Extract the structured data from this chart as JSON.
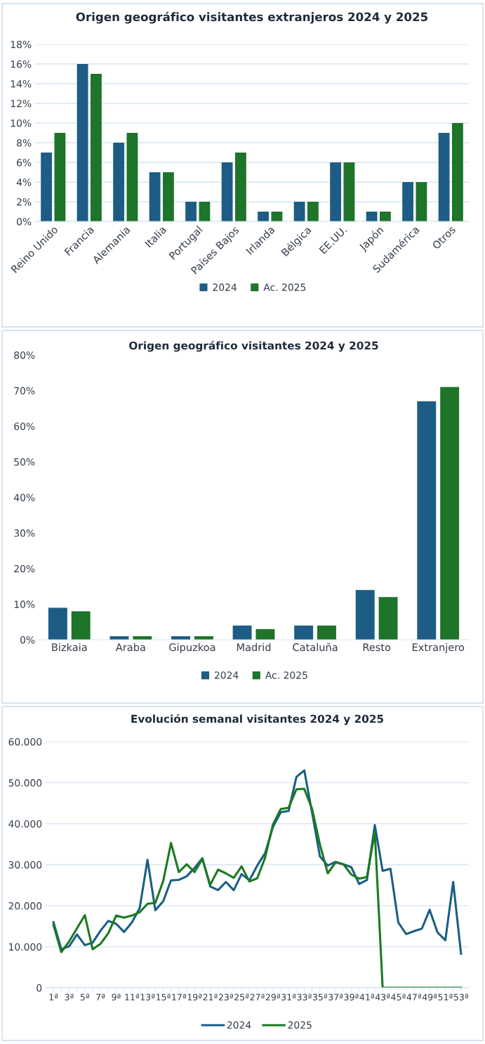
{
  "chart_data": [
    {
      "type": "bar",
      "title": "Origen geográfico visitantes extranjeros 2024 y 2025",
      "categories": [
        "Reino Unido",
        "Francia",
        "Alemania",
        "Italia",
        "Portugal",
        "Países Bajos",
        "Irlanda",
        "Bélgica",
        "EE.UU.",
        "Japón",
        "Sudamérica",
        "Otros"
      ],
      "series": [
        {
          "name": "2024",
          "color": "#1d5c84",
          "values": [
            7,
            16,
            8,
            5,
            2,
            6,
            1,
            2,
            6,
            1,
            4,
            9
          ]
        },
        {
          "name": "Ac. 2025",
          "color": "#1e7429",
          "values": [
            9,
            15,
            9,
            5,
            2,
            7,
            1,
            2,
            6,
            1,
            4,
            10
          ]
        }
      ],
      "ylim": [
        0,
        18
      ],
      "yticks": [
        {
          "value": 0,
          "label": "0%"
        },
        {
          "value": 2,
          "label": "2%"
        },
        {
          "value": 4,
          "label": "4%"
        },
        {
          "value": 6,
          "label": "6%"
        },
        {
          "value": 8,
          "label": "8%"
        },
        {
          "value": 10,
          "label": "10%"
        },
        {
          "value": 12,
          "label": "12%"
        },
        {
          "value": 14,
          "label": "14%"
        },
        {
          "value": 16,
          "label": "16%"
        },
        {
          "value": 18,
          "label": "18%"
        }
      ],
      "grid": "y",
      "legend": "bottom",
      "marker": "square"
    },
    {
      "type": "bar",
      "title": "Origen geográfico visitantes 2024 y 2025",
      "categories": [
        "Bizkaia",
        "Araba",
        "Gipuzkoa",
        "Madrid",
        "Cataluña",
        "Resto",
        "Extranjero"
      ],
      "series": [
        {
          "name": "2024",
          "color": "#1d5c84",
          "values": [
            9,
            1,
            1,
            4,
            4,
            14,
            67
          ]
        },
        {
          "name": "Ac. 2025",
          "color": "#1e7429",
          "values": [
            8,
            1,
            1,
            3,
            4,
            12,
            71
          ]
        }
      ],
      "ylim": [
        0,
        80
      ],
      "yticks": [
        {
          "value": 0,
          "label": "0%"
        },
        {
          "value": 10,
          "label": "10%"
        },
        {
          "value": 20,
          "label": "20%"
        },
        {
          "value": 30,
          "label": "30%"
        },
        {
          "value": 40,
          "label": "40%"
        },
        {
          "value": 50,
          "label": "50%"
        },
        {
          "value": 60,
          "label": "60%"
        },
        {
          "value": 70,
          "label": "70%"
        },
        {
          "value": 80,
          "label": "80%"
        }
      ],
      "grid": false,
      "legend": "bottom",
      "marker": "square"
    },
    {
      "type": "line",
      "title": "Evolución semanal visitantes 2024 y 2025",
      "categories": [
        "1ª",
        null,
        "3ª",
        null,
        "5ª",
        null,
        "7ª",
        null,
        "9ª",
        null,
        "11ª",
        null,
        "13ª",
        null,
        "15ª",
        null,
        "17ª",
        null,
        "19ª",
        null,
        "21ª",
        null,
        "23ª",
        null,
        "25ª",
        null,
        "27ª",
        null,
        "29ª",
        null,
        "31ª",
        null,
        "33ª",
        null,
        "35ª",
        null,
        "37ª",
        null,
        "39ª",
        null,
        "41ª",
        null,
        "43ª",
        null,
        "45ª",
        null,
        "47ª",
        null,
        "49ª",
        null,
        "51ª",
        null,
        "53ª"
      ],
      "series": [
        {
          "name": "2024",
          "color": "#1a5e85",
          "values": [
            16000,
            9400,
            10100,
            13000,
            10400,
            11000,
            13900,
            16300,
            15600,
            13600,
            15900,
            19400,
            31200,
            18900,
            21100,
            26200,
            26300,
            27200,
            29200,
            31600,
            24700,
            23800,
            25800,
            23800,
            27700,
            26200,
            29800,
            32800,
            39200,
            42800,
            43100,
            51400,
            53000,
            42700,
            32000,
            29800,
            30700,
            30100,
            29400,
            25300,
            26300,
            39700,
            28500,
            29000,
            15900,
            13100,
            13800,
            14400,
            19000,
            13500,
            11600,
            25800,
            8300
          ]
        },
        {
          "name": "2025",
          "color": "#1b7a1f",
          "values": [
            15300,
            8700,
            11300,
            14500,
            17700,
            9400,
            10700,
            13300,
            17600,
            17100,
            17600,
            18400,
            20500,
            20700,
            26000,
            35300,
            28200,
            30100,
            28200,
            31400,
            25100,
            28800,
            27900,
            26800,
            29600,
            25900,
            26700,
            31700,
            39800,
            43600,
            43900,
            48400,
            48500,
            43600,
            34900,
            27900,
            30600,
            30100,
            27600,
            26600,
            27000,
            38000,
            0,
            0,
            0,
            0,
            0,
            0,
            0,
            0,
            0,
            0,
            0
          ]
        }
      ],
      "ylim": [
        0,
        60000
      ],
      "yticks": [
        {
          "value": 0,
          "label": "0"
        },
        {
          "value": 10000,
          "label": "10.000"
        },
        {
          "value": 20000,
          "label": "20.000"
        },
        {
          "value": 30000,
          "label": "30.000"
        },
        {
          "value": 40000,
          "label": "40.000"
        },
        {
          "value": 50000,
          "label": "50.000"
        },
        {
          "value": 60000,
          "label": "60.000"
        }
      ],
      "grid": "y",
      "legend": "bottom",
      "marker": "none",
      "line_style": "solid"
    }
  ]
}
